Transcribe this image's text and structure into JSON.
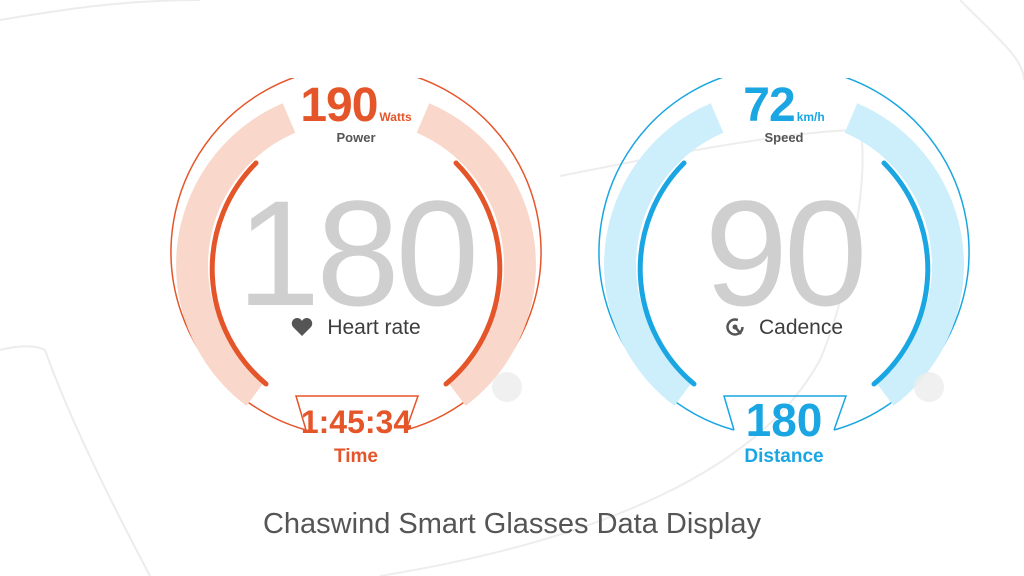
{
  "left_gauge": {
    "power_value": "190",
    "power_unit": "Watts",
    "power_label": "Power",
    "heart_rate_value": "180",
    "heart_rate_label": "Heart rate",
    "time_value": "1:45:34",
    "time_label": "Time",
    "icon": "heart-icon",
    "accent_color": "#e5552a",
    "light_color": "#f9d8cb"
  },
  "right_gauge": {
    "speed_value": "72",
    "speed_unit": "km/h",
    "speed_label": "Speed",
    "cadence_value": "90",
    "cadence_label": "Cadence",
    "distance_value": "180",
    "distance_label": "Distance",
    "icon": "cadence-icon",
    "accent_color": "#1aa6e2",
    "light_color": "#cdeefb"
  },
  "caption": "Chaswind Smart Glasses Data Display"
}
